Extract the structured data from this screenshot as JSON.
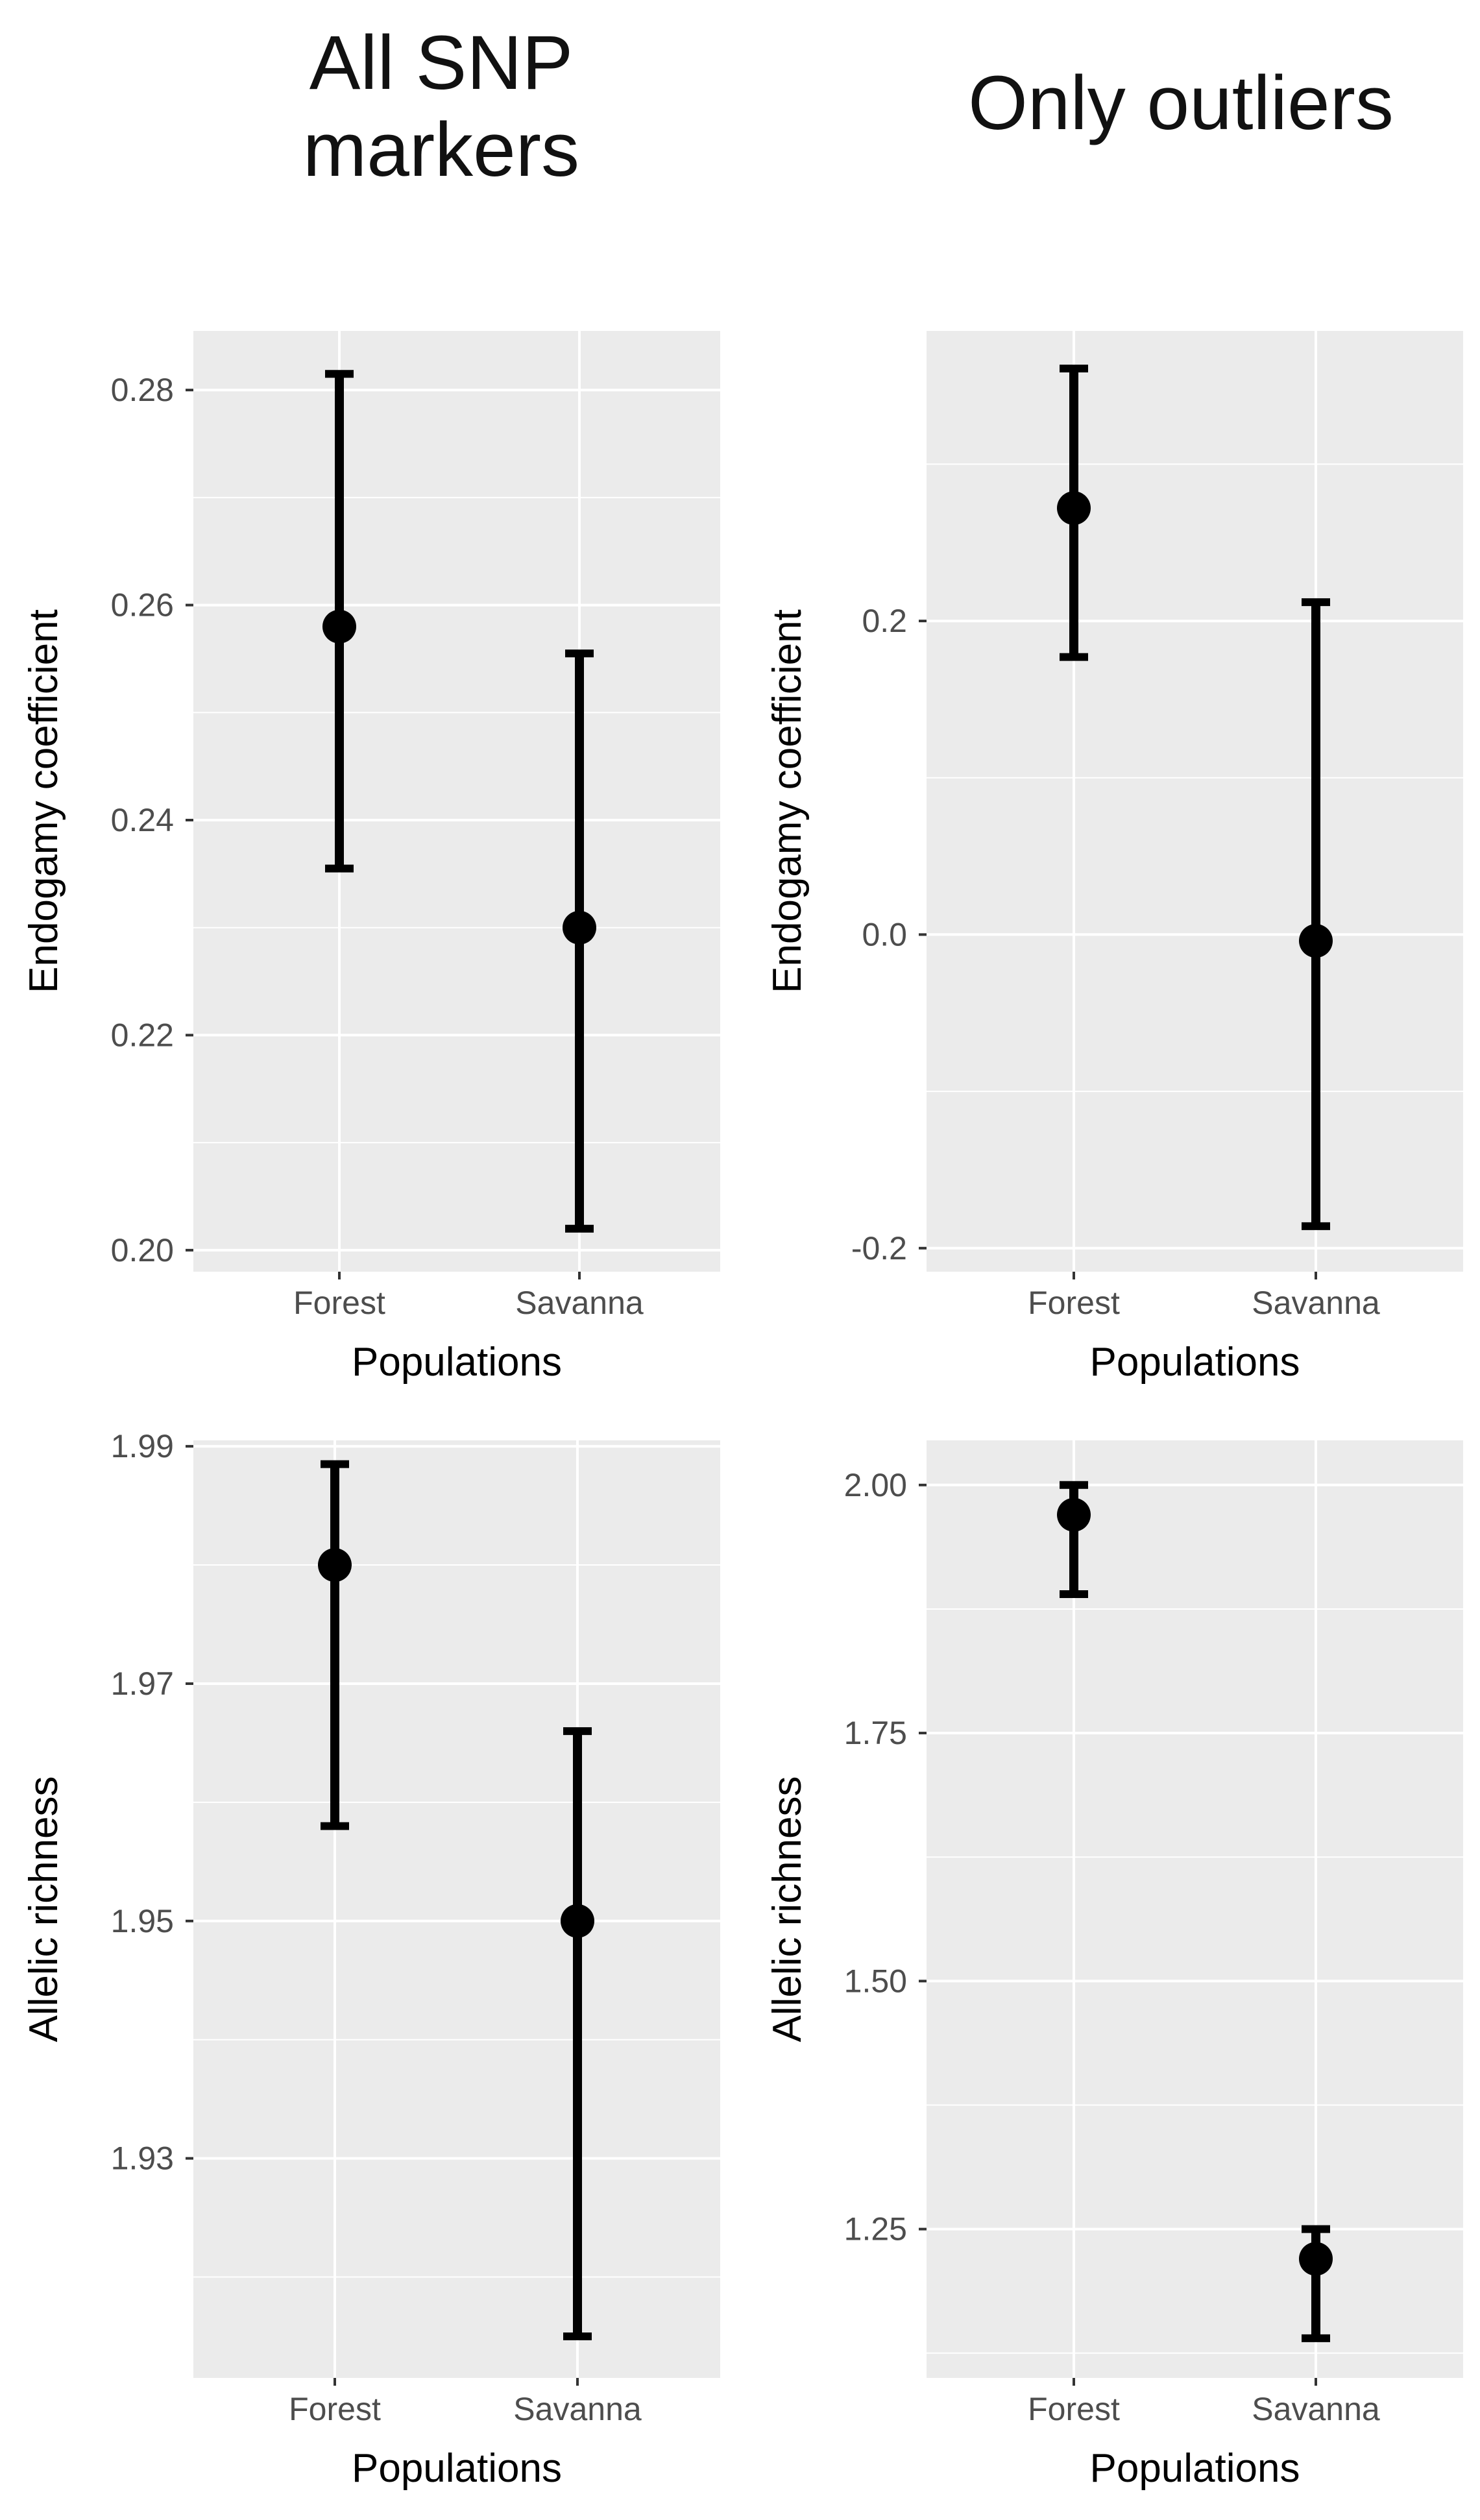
{
  "column_titles": {
    "left": "All SNP\nmarkers",
    "right": "Only outliers"
  },
  "chart_data": [
    {
      "type": "errorbar",
      "panel": "top-left",
      "title": "All SNP markers",
      "xlabel": "Populations",
      "ylabel": "Endogamy coefficient",
      "categories": [
        "Forest",
        "Savanna"
      ],
      "values": [
        0.258,
        0.23
      ],
      "lower": [
        0.2355,
        0.202
      ],
      "upper": [
        0.2815,
        0.2555
      ],
      "ylim": [
        0.198,
        0.2855
      ],
      "yticks": [
        0.2,
        0.22,
        0.24,
        0.26,
        0.28
      ],
      "yticklabels": [
        "0.20",
        "0.22",
        "0.24",
        "0.26",
        "0.28"
      ],
      "grid": true
    },
    {
      "type": "errorbar",
      "panel": "top-right",
      "title": "Only outliers",
      "xlabel": "Populations",
      "ylabel": "Endogamy coefficient",
      "categories": [
        "Forest",
        "Savanna"
      ],
      "values": [
        0.272,
        -0.004
      ],
      "lower": [
        0.177,
        -0.186
      ],
      "upper": [
        0.361,
        0.212
      ],
      "ylim": [
        -0.215,
        0.385
      ],
      "yticks": [
        -0.2,
        0.0,
        0.2
      ],
      "yticklabels": [
        "-0.2",
        "0.0",
        "0.2"
      ],
      "grid": true
    },
    {
      "type": "errorbar",
      "panel": "bottom-left",
      "title": "All SNP markers",
      "xlabel": "Populations",
      "ylabel": "Allelic richness",
      "categories": [
        "Forest",
        "Savanna"
      ],
      "values": [
        1.98,
        1.95
      ],
      "lower": [
        1.958,
        1.915
      ],
      "upper": [
        1.9885,
        1.966
      ],
      "ylim": [
        1.9115,
        1.9905
      ],
      "yticks": [
        1.93,
        1.95,
        1.97,
        1.99
      ],
      "yticklabels": [
        "1.93",
        "1.95",
        "1.97",
        "1.99"
      ],
      "grid": true
    },
    {
      "type": "errorbar",
      "panel": "bottom-right",
      "title": "Only outliers",
      "xlabel": "Populations",
      "ylabel": "Allelic richness",
      "categories": [
        "Forest",
        "Savanna"
      ],
      "values": [
        1.97,
        1.22
      ],
      "lower": [
        1.89,
        1.14
      ],
      "upper": [
        2.0,
        1.25
      ],
      "ylim": [
        1.1,
        2.045
      ],
      "yticks": [
        1.25,
        1.5,
        1.75,
        2.0
      ],
      "yticklabels": [
        "1.25",
        "1.50",
        "1.75",
        "2.00"
      ],
      "grid": true
    }
  ]
}
